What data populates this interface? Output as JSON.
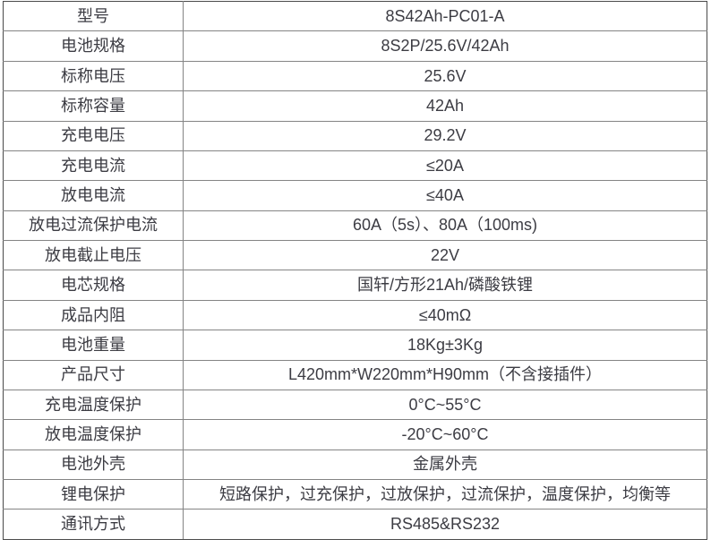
{
  "table": {
    "name": "battery-specification-table",
    "columns": [
      "label",
      "value"
    ],
    "rows": [
      {
        "label": "型号",
        "value": "8S42Ah-PC01-A"
      },
      {
        "label": "电池规格",
        "value": "8S2P/25.6V/42Ah"
      },
      {
        "label": "标称电压",
        "value": "25.6V"
      },
      {
        "label": "标称容量",
        "value": "42Ah"
      },
      {
        "label": "充电电压",
        "value": "29.2V"
      },
      {
        "label": "充电电流",
        "value": "≤20A"
      },
      {
        "label": "放电电流",
        "value": "≤40A"
      },
      {
        "label": "放电过流保护电流",
        "value": "60A（5s）、80A（100ms)"
      },
      {
        "label": "放电截止电压",
        "value": "22V"
      },
      {
        "label": "电芯规格",
        "value": "国轩/方形21Ah/磷酸铁锂"
      },
      {
        "label": "成品内阻",
        "value": "≤40mΩ"
      },
      {
        "label": "电池重量",
        "value": "18Kg±3Kg"
      },
      {
        "label": "产品尺寸",
        "value": "L420mm*W220mm*H90mm（不含接插件）"
      },
      {
        "label": "充电温度保护",
        "value": "0°C~55°C"
      },
      {
        "label": "放电温度保护",
        "value": "-20°C~60°C"
      },
      {
        "label": "电池外壳",
        "value": "金属外壳"
      },
      {
        "label": "锂电保护",
        "value": "短路保护，过充保护，过放保护，过流保护，温度保护，均衡等"
      },
      {
        "label": "通讯方式",
        "value": "RS485&RS232"
      }
    ],
    "colors": {
      "background": "#ffffff",
      "grid_line": "#848484",
      "outer_border": "#4a4a4a",
      "text": "#3c3c43"
    }
  }
}
